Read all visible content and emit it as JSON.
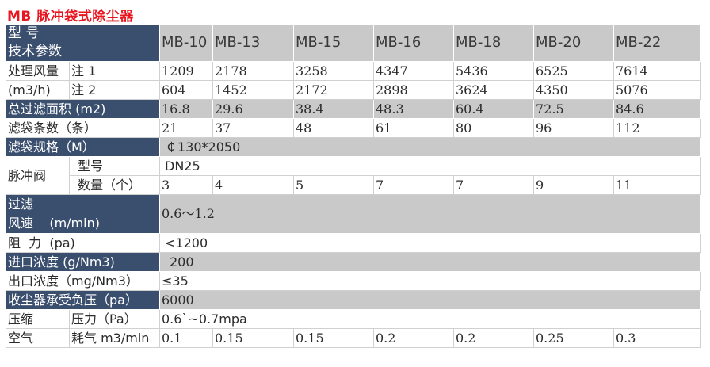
{
  "title": "MB 脉冲袋式除尘器",
  "header": {
    "label_line1": "型  号",
    "label_line2": "技术参数",
    "models": [
      "MB-10",
      "MB-13",
      "MB-15",
      "MB-16",
      "MB-18",
      "MB-20",
      "MB-22"
    ]
  },
  "air_volume": {
    "label_line1": "处理风量",
    "label_line2": "(m3/h)",
    "note1_label": "注 1",
    "note1_values": [
      "1209",
      "2178",
      "3258",
      "4347",
      "5436",
      "6525",
      "7614"
    ],
    "note2_label": "注 2",
    "note2_values": [
      "604",
      "1452",
      "2172",
      "2898",
      "3624",
      "4350",
      "5076"
    ]
  },
  "filter_area": {
    "label": "总过滤面积  (m2)",
    "values": [
      "16.8",
      "29.6",
      "38.4",
      "48.3",
      "60.4",
      "72.5",
      "84.6"
    ]
  },
  "bag_count": {
    "label": "滤袋条数（条）",
    "values": [
      "21",
      "37",
      "48",
      "61",
      "80",
      "96",
      "112"
    ]
  },
  "bag_spec": {
    "label": "滤袋规格（M）",
    "value": "￠130*2050"
  },
  "pulse_valve": {
    "label": "脉冲阀",
    "model_label": "型号",
    "model_value": "DN25",
    "qty_label": "数量（个）",
    "qty_values": [
      "3",
      "4",
      "5",
      "7",
      "7",
      "9",
      "11"
    ]
  },
  "filter_speed": {
    "label_line1": "过滤",
    "label_line2": "风速    (m/min)",
    "value": "0.6～1.2"
  },
  "resistance": {
    "label": "阻  力  (pa)",
    "value": "<1200"
  },
  "inlet_conc": {
    "label": "进口浓度 (g/Nm3)",
    "value": "200"
  },
  "outlet_conc": {
    "label": "出口浓度（mg/Nm3）",
    "value": "≤35"
  },
  "negative_pressure": {
    "label": "收尘器承受负压（pa）",
    "value": "6000"
  },
  "compressed_air": {
    "label_line1": "压缩",
    "label_line2": "空气",
    "pressure_label": "压力（Pa）",
    "pressure_value": "0.6`~0.7mpa",
    "consumption_label": "耗气 m3/min",
    "consumption_values": [
      "0.1",
      "0.15",
      "0.15",
      "0.2",
      "0.2",
      "0.25",
      "0.3"
    ]
  }
}
